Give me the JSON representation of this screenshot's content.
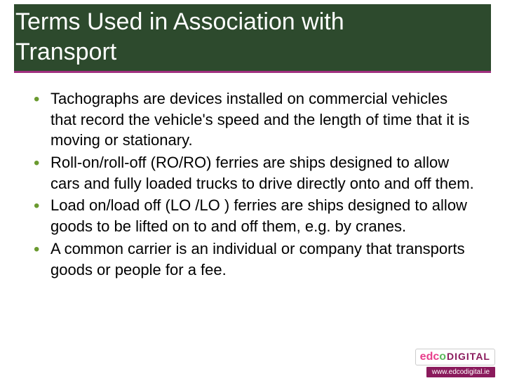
{
  "slide": {
    "title_line1": "Terms Used in Association with",
    "title_line2": "  Transport",
    "title_bg": "#2d4a2d",
    "title_color": "#ffffff",
    "underline_color": "#a03080",
    "bullet_color": "#6a9a2f",
    "body_fontsize": 22,
    "bullets": [
      "Tachographs are devices installed on commercial vehicles that record the vehicle's speed and the length of time that it is moving or stationary.",
      "Roll-on/roll-off (RO/RO) ferries are ships designed to allow cars and fully loaded trucks to drive directly onto and off them.",
      "Load on/load off (LO /LO ) ferries are ships designed to allow goods to be lifted on to and off them, e.g. by cranes.",
      "A common carrier is an individual or company that transports goods or people for a fee."
    ]
  },
  "footer": {
    "logo_text_edco": "edco",
    "logo_text_digital": "DIGITAL",
    "url": "www.edcodigital.ie"
  }
}
